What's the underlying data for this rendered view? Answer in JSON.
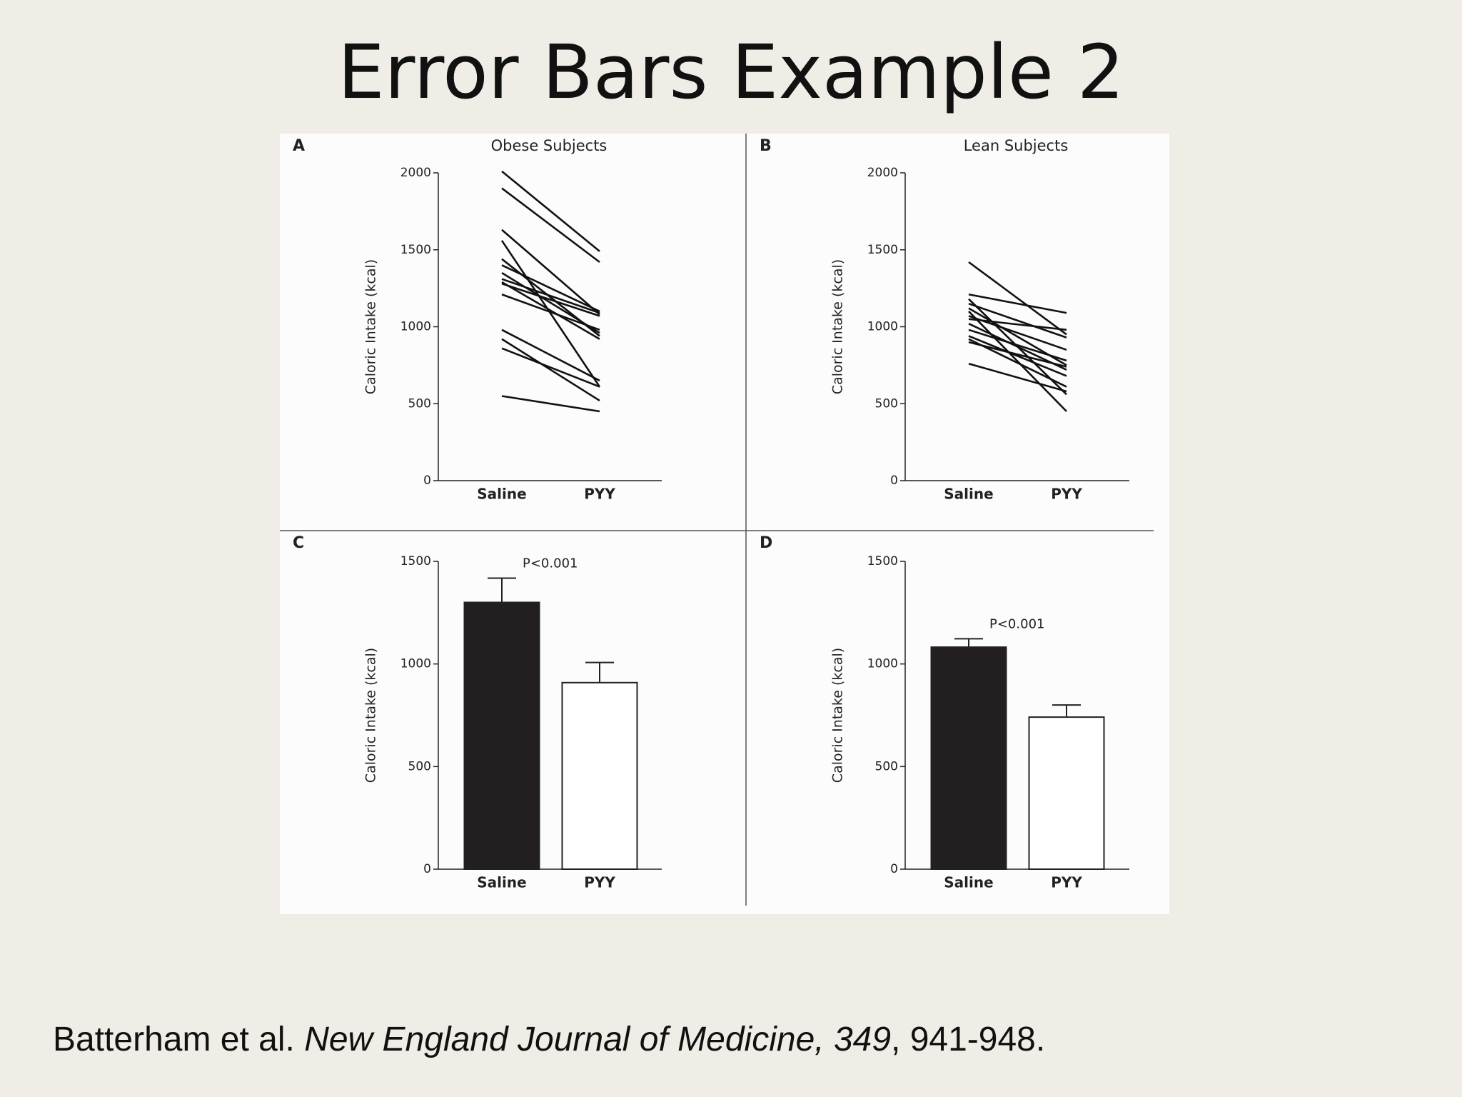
{
  "slide_title": "Error Bars Example 2",
  "citation": {
    "authors": "Batterham et al.",
    "journal": "New England Journal of Medicine, 349",
    "pages": ", 941-948."
  },
  "chart_data": [
    {
      "type": "line",
      "label": "A",
      "title": "Obese Subjects",
      "y_label": "Caloric Intake (kcal)",
      "color": "#111111",
      "categories": [
        "Saline",
        "PYY"
      ],
      "ylim": [
        0,
        2000
      ],
      "yticks": [
        0,
        500,
        1000,
        1500,
        2000
      ],
      "series": [
        {
          "values": [
            2010,
            1490
          ]
        },
        {
          "values": [
            1900,
            1420
          ]
        },
        {
          "values": [
            1630,
            1080
          ]
        },
        {
          "values": [
            1560,
            610
          ]
        },
        {
          "values": [
            1440,
            940
          ]
        },
        {
          "values": [
            1400,
            1100
          ]
        },
        {
          "values": [
            1350,
            960
          ]
        },
        {
          "values": [
            1310,
            1090
          ]
        },
        {
          "values": [
            1290,
            920
          ]
        },
        {
          "values": [
            1280,
            1070
          ]
        },
        {
          "values": [
            1210,
            980
          ]
        },
        {
          "values": [
            980,
            650
          ]
        },
        {
          "values": [
            920,
            520
          ]
        },
        {
          "values": [
            860,
            610
          ]
        },
        {
          "values": [
            550,
            450
          ]
        }
      ]
    },
    {
      "type": "line",
      "label": "B",
      "title": "Lean Subjects",
      "y_label": "Caloric Intake (kcal)",
      "color": "#111111",
      "categories": [
        "Saline",
        "PYY"
      ],
      "ylim": [
        0,
        2000
      ],
      "yticks": [
        0,
        500,
        1000,
        1500,
        2000
      ],
      "series": [
        {
          "values": [
            1420,
            950
          ]
        },
        {
          "values": [
            1210,
            1090
          ]
        },
        {
          "values": [
            1180,
            560
          ]
        },
        {
          "values": [
            1150,
            930
          ]
        },
        {
          "values": [
            1120,
            750
          ]
        },
        {
          "values": [
            1100,
            450
          ]
        },
        {
          "values": [
            1070,
            850
          ]
        },
        {
          "values": [
            1050,
            980
          ]
        },
        {
          "values": [
            1020,
            720
          ]
        },
        {
          "values": [
            980,
            780
          ]
        },
        {
          "values": [
            940,
            680
          ]
        },
        {
          "values": [
            920,
            610
          ]
        },
        {
          "values": [
            900,
            740
          ]
        },
        {
          "values": [
            760,
            580
          ]
        }
      ]
    },
    {
      "type": "bar",
      "label": "C",
      "y_label": "Caloric Intake (kcal)",
      "annotation": "P<0.001",
      "categories": [
        "Saline",
        "PYY"
      ],
      "values": [
        1300,
        909
      ],
      "errors": [
        118,
        98
      ],
      "colors": [
        "#231f20",
        "#ffffff"
      ],
      "ylim": [
        0,
        1500
      ],
      "yticks": [
        0,
        500,
        1000,
        1500
      ]
    },
    {
      "type": "bar",
      "label": "D",
      "y_label": "Caloric Intake (kcal)",
      "annotation": "P<0.001",
      "categories": [
        "Saline",
        "PYY"
      ],
      "values": [
        1082,
        741
      ],
      "errors": [
        41,
        59
      ],
      "colors": [
        "#231f20",
        "#ffffff"
      ],
      "ylim": [
        0,
        1500
      ],
      "yticks": [
        0,
        500,
        1000,
        1500
      ]
    }
  ]
}
